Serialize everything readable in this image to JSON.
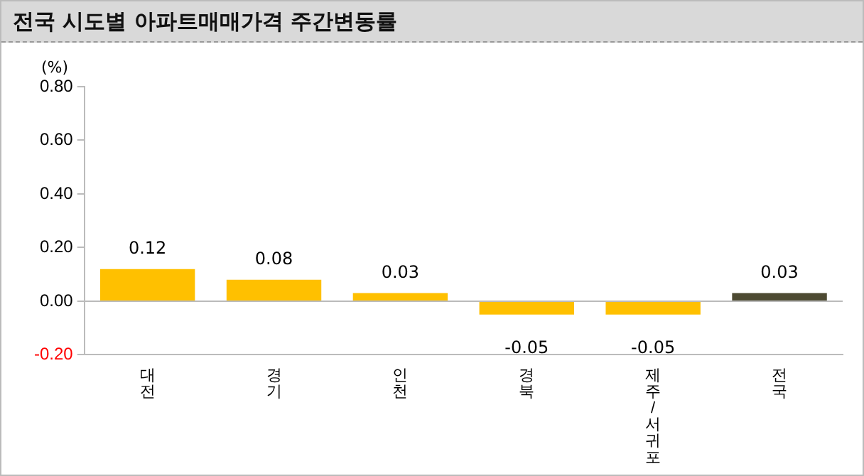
{
  "chart_data": {
    "type": "bar",
    "title": "전국 시도별 아파트매매가격 주간변동률",
    "ylabel": "(%)",
    "categories": [
      "대전",
      "경기",
      "인천",
      "경북",
      "제주/서귀포",
      "전국"
    ],
    "values": [
      0.12,
      0.08,
      0.03,
      -0.05,
      -0.05,
      0.03
    ],
    "colors": [
      "#ffc000",
      "#ffc000",
      "#ffc000",
      "#ffc000",
      "#ffc000",
      "#4d4a32"
    ],
    "ylim": [
      -0.2,
      0.8
    ],
    "yticks": [
      {
        "value": -0.2,
        "label": "-0.20"
      },
      {
        "value": 0,
        "label": "0.00"
      },
      {
        "value": 0.2,
        "label": "0.20"
      },
      {
        "value": 0.4,
        "label": "0.40"
      },
      {
        "value": 0.6,
        "label": "0.60"
      },
      {
        "value": 0.8,
        "label": "0.80"
      }
    ],
    "data_labels": true,
    "legend": false
  }
}
